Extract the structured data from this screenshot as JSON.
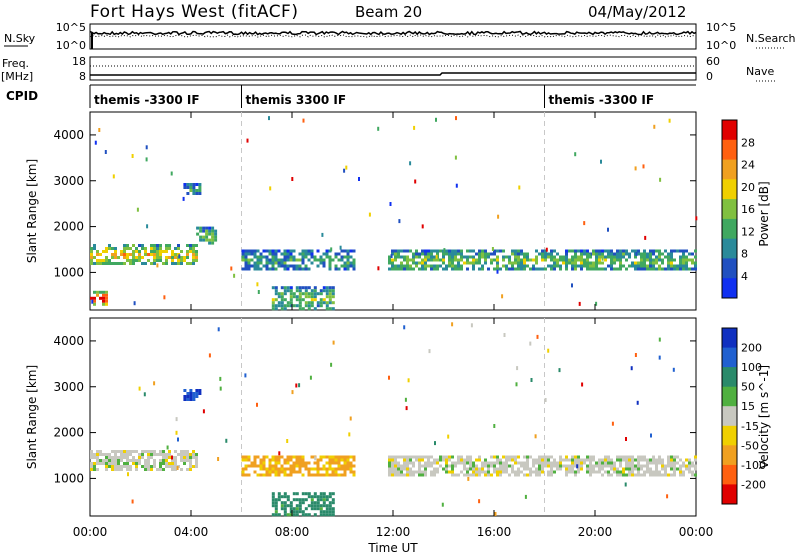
{
  "header": {
    "station": "Fort Hays West (fitACF)",
    "beam": "Beam 20",
    "date": "04/May/2012"
  },
  "strip1": {
    "left_label": "N.Sky",
    "right_label": "N.Search",
    "left_ticks": [
      "10^5",
      "10^0"
    ],
    "right_ticks": [
      "10^5",
      "10^0"
    ]
  },
  "strip2": {
    "left_label": "Freq.",
    "left_unit": "[MHz]",
    "right_label": "Nave",
    "left_ticks": [
      "18",
      "8"
    ],
    "right_ticks": [
      "60",
      "0"
    ]
  },
  "cpid": {
    "label": "CPID",
    "segments": [
      {
        "start": 0.0,
        "end": 6.0,
        "name": "themis -3300 IF"
      },
      {
        "start": 6.0,
        "end": 18.0,
        "name": "themis 3300 IF"
      },
      {
        "start": 18.0,
        "end": 24.0,
        "name": "themis -3300 IF"
      }
    ]
  },
  "chart_data": [
    {
      "type": "heatmap",
      "title": "",
      "xlabel": "Time UT",
      "ylabel": "Slant Range [km]",
      "xlim": [
        0,
        24
      ],
      "ylim": [
        180,
        4500
      ],
      "x_ticks": [
        0,
        4,
        8,
        12,
        16,
        20,
        24
      ],
      "x_tick_labels": [
        "00:00",
        "04:00",
        "08:00",
        "12:00",
        "16:00",
        "20:00",
        "00:00"
      ],
      "y_ticks": [
        1000,
        2000,
        3000,
        4000
      ],
      "y_tick_labels": [
        "1000",
        "2000",
        "3000",
        "4000"
      ],
      "colorbar": {
        "label": "Power [dB]",
        "range": [
          0,
          32
        ],
        "tick_values": [
          4,
          8,
          12,
          16,
          20,
          24,
          28
        ],
        "tick_labels": [
          "4",
          "8",
          "12",
          "16",
          "20",
          "24",
          "28"
        ],
        "colors": [
          "#1030f0",
          "#2050c0",
          "#2a8a9a",
          "#40a860",
          "#80c040",
          "#f0d000",
          "#f0a020",
          "#ff6010",
          "#e00000"
        ]
      },
      "echo_regions": [
        {
          "t": [
            0.0,
            4.2
          ],
          "range": [
            1200,
            1620
          ],
          "level": 0.55
        },
        {
          "t": [
            4.2,
            5.0
          ],
          "range": [
            1620,
            2000
          ],
          "level": 0.4
        },
        {
          "t": [
            3.7,
            4.3
          ],
          "range": [
            2700,
            2950
          ],
          "level": 0.3
        },
        {
          "t": [
            6.0,
            10.5
          ],
          "range": [
            1050,
            1500
          ],
          "level": 0.3
        },
        {
          "t": [
            11.8,
            24.0
          ],
          "range": [
            1050,
            1500
          ],
          "level": 0.4
        },
        {
          "t": [
            0.0,
            0.6
          ],
          "range": [
            300,
            600
          ],
          "level": 0.85
        },
        {
          "t": [
            7.2,
            9.6
          ],
          "range": [
            180,
            700
          ],
          "level": 0.4
        }
      ]
    },
    {
      "type": "heatmap",
      "title": "",
      "xlabel": "Time UT",
      "ylabel": "Slant Range [km]",
      "xlim": [
        0,
        24
      ],
      "ylim": [
        180,
        4500
      ],
      "x_ticks": [
        0,
        4,
        8,
        12,
        16,
        20,
        24
      ],
      "x_tick_labels": [
        "00:00",
        "04:00",
        "08:00",
        "12:00",
        "16:00",
        "20:00",
        "00:00"
      ],
      "y_ticks": [
        1000,
        2000,
        3000,
        4000
      ],
      "y_tick_labels": [
        "1000",
        "2000",
        "3000",
        "4000"
      ],
      "colorbar": {
        "label": "Velocity [m s^-1]",
        "tick_labels": [
          "200",
          "100",
          "50",
          "15",
          "-15",
          "-50",
          "-100",
          "-200"
        ],
        "colors": [
          "#1030c0",
          "#2060d0",
          "#2a8a6a",
          "#50b040",
          "#c8c8c0",
          "#f0d000",
          "#f0a020",
          "#ff6010",
          "#e00000"
        ]
      },
      "echo_regions": [
        {
          "t": [
            0.0,
            4.2
          ],
          "range": [
            1200,
            1620
          ],
          "value": 0
        },
        {
          "t": [
            3.7,
            4.3
          ],
          "range": [
            2700,
            2950
          ],
          "value": 150
        },
        {
          "t": [
            6.0,
            10.5
          ],
          "range": [
            1050,
            1500
          ],
          "value": -40
        },
        {
          "t": [
            11.8,
            24.0
          ],
          "range": [
            1050,
            1500
          ],
          "value": 0
        },
        {
          "t": [
            7.2,
            9.6
          ],
          "range": [
            180,
            700
          ],
          "value": 50
        }
      ]
    }
  ]
}
